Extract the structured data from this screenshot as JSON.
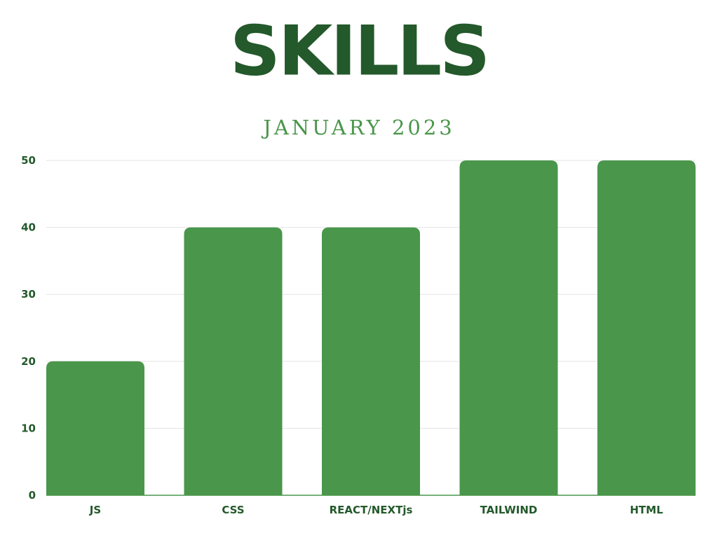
{
  "title": "SKILLS",
  "subtitle": "JANUARY 2023",
  "colors": {
    "title": "#23592b",
    "subtitle": "#4a964b",
    "bar": "#4a964b",
    "grid": "#e3e3e3",
    "axis": "#4a964b",
    "tick_text": "#23592b"
  },
  "chart_data": {
    "type": "bar",
    "categories": [
      "JS",
      "CSS",
      "REACT/NEXTjs",
      "TAILWIND",
      "HTML"
    ],
    "values": [
      20,
      40,
      40,
      50,
      50
    ],
    "ylim": [
      0,
      50
    ],
    "yticks": [
      0,
      10,
      20,
      30,
      40,
      50
    ],
    "xlabel": "",
    "ylabel": "",
    "grid": true,
    "legend": "none"
  }
}
